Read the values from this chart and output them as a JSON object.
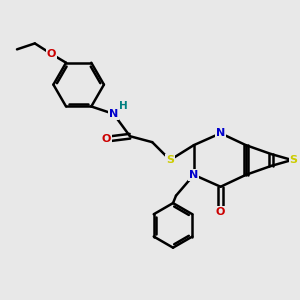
{
  "bg_color": "#e8e8e8",
  "bond_color": "#000000",
  "bond_width": 1.8,
  "atom_colors": {
    "N": "#0000cc",
    "O": "#cc0000",
    "S": "#cccc00",
    "H": "#008080",
    "C": "#000000"
  },
  "font_size_atom": 8,
  "font_size_small": 6.5
}
